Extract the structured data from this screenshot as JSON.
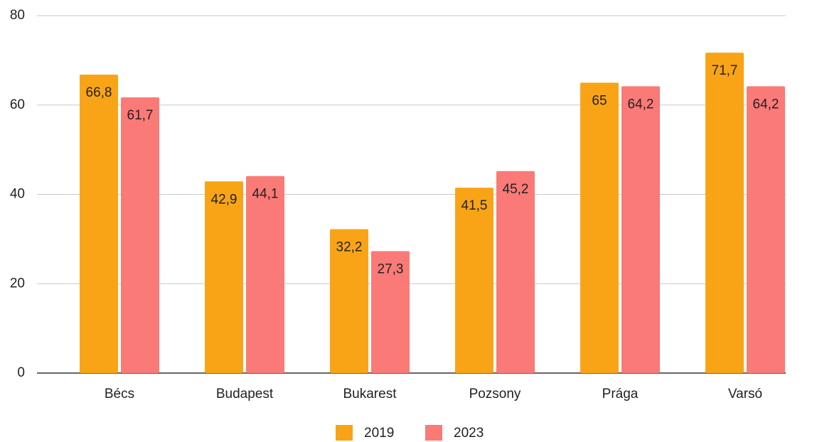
{
  "chart_data": {
    "type": "bar",
    "categories": [
      "Bécs",
      "Budapest",
      "Bukarest",
      "Pozsony",
      "Prága",
      "Varsó"
    ],
    "series": [
      {
        "name": "2019",
        "color": "#f9a417",
        "values": [
          66.8,
          42.9,
          32.2,
          41.5,
          65,
          71.7
        ],
        "value_labels": [
          "66,8",
          "42,9",
          "32,2",
          "41,5",
          "65",
          "71,7"
        ]
      },
      {
        "name": "2023",
        "color": "#fa7a78",
        "values": [
          61.7,
          44.1,
          27.3,
          45.2,
          64.2,
          64.2
        ],
        "value_labels": [
          "61,7",
          "44,1",
          "27,3",
          "45,2",
          "64,2",
          "64,2"
        ]
      }
    ],
    "ylim": [
      0,
      80
    ],
    "yticks": [
      0,
      20,
      40,
      60,
      80
    ],
    "grid": true,
    "legend": "bottom"
  }
}
